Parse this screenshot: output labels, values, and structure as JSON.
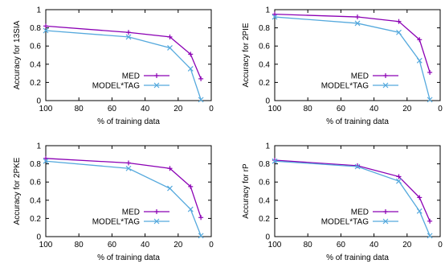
{
  "chart_data": [
    {
      "type": "line",
      "ylabel": "Accuracy for 13SIA",
      "xlabel": "% of training data",
      "xlim": [
        100,
        0
      ],
      "ylim": [
        0,
        1
      ],
      "x_ticks": [
        "100",
        "80",
        "60",
        "40",
        "20",
        "0"
      ],
      "y_ticks": [
        "0",
        "0.2",
        "0.4",
        "0.6",
        "0.8",
        "1"
      ],
      "legend": "bottom-right",
      "series": [
        {
          "name": "MED",
          "color": "#8b00b4",
          "marker": "plus",
          "points": [
            [
              100,
              0.82
            ],
            [
              50,
              0.75
            ],
            [
              25,
              0.7
            ],
            [
              12.5,
              0.51
            ],
            [
              6.25,
              0.24
            ]
          ]
        },
        {
          "name": "MODEL*TAG",
          "color": "#55a9dd",
          "marker": "x",
          "points": [
            [
              100,
              0.77
            ],
            [
              50,
              0.7
            ],
            [
              25,
              0.58
            ],
            [
              12.5,
              0.35
            ],
            [
              6.25,
              0.01
            ]
          ]
        }
      ]
    },
    {
      "type": "line",
      "ylabel": "Accuracy for 2PIE",
      "xlabel": "% of training data",
      "xlim": [
        100,
        0
      ],
      "ylim": [
        0,
        1
      ],
      "x_ticks": [
        "100",
        "80",
        "60",
        "40",
        "20",
        "0"
      ],
      "y_ticks": [
        "0",
        "0.2",
        "0.4",
        "0.6",
        "0.8",
        "1"
      ],
      "legend": "bottom-right",
      "series": [
        {
          "name": "MED",
          "color": "#8b00b4",
          "marker": "plus",
          "points": [
            [
              100,
              0.95
            ],
            [
              50,
              0.92
            ],
            [
              25,
              0.87
            ],
            [
              12.5,
              0.67
            ],
            [
              6.25,
              0.31
            ]
          ]
        },
        {
          "name": "MODEL*TAG",
          "color": "#55a9dd",
          "marker": "x",
          "points": [
            [
              100,
              0.92
            ],
            [
              50,
              0.85
            ],
            [
              25,
              0.75
            ],
            [
              12.5,
              0.44
            ],
            [
              6.25,
              0.01
            ]
          ]
        }
      ]
    },
    {
      "type": "line",
      "ylabel": "Accuracy for 2PKE",
      "xlabel": "% of training data",
      "xlim": [
        100,
        0
      ],
      "ylim": [
        0,
        1
      ],
      "x_ticks": [
        "100",
        "80",
        "60",
        "40",
        "20",
        "0"
      ],
      "y_ticks": [
        "0",
        "0.2",
        "0.4",
        "0.6",
        "0.8",
        "1"
      ],
      "legend": "bottom-right",
      "series": [
        {
          "name": "MED",
          "color": "#8b00b4",
          "marker": "plus",
          "points": [
            [
              100,
              0.86
            ],
            [
              50,
              0.81
            ],
            [
              25,
              0.75
            ],
            [
              12.5,
              0.55
            ],
            [
              6.25,
              0.21
            ]
          ]
        },
        {
          "name": "MODEL*TAG",
          "color": "#55a9dd",
          "marker": "x",
          "points": [
            [
              100,
              0.83
            ],
            [
              50,
              0.75
            ],
            [
              25,
              0.53
            ],
            [
              12.5,
              0.3
            ],
            [
              6.25,
              0.01
            ]
          ]
        }
      ]
    },
    {
      "type": "line",
      "ylabel": "Accuracy for rP",
      "xlabel": "% of training data",
      "xlim": [
        100,
        0
      ],
      "ylim": [
        0,
        1
      ],
      "x_ticks": [
        "100",
        "80",
        "60",
        "40",
        "20",
        "0"
      ],
      "y_ticks": [
        "0",
        "0.2",
        "0.4",
        "0.6",
        "0.8",
        "1"
      ],
      "legend": "bottom-right",
      "series": [
        {
          "name": "MED",
          "color": "#8b00b4",
          "marker": "plus",
          "points": [
            [
              100,
              0.84
            ],
            [
              50,
              0.78
            ],
            [
              25,
              0.66
            ],
            [
              12.5,
              0.43
            ],
            [
              6.25,
              0.17
            ]
          ]
        },
        {
          "name": "MODEL*TAG",
          "color": "#55a9dd",
          "marker": "x",
          "points": [
            [
              100,
              0.83
            ],
            [
              50,
              0.77
            ],
            [
              25,
              0.61
            ],
            [
              12.5,
              0.28
            ],
            [
              6.25,
              0.01
            ]
          ]
        }
      ]
    }
  ]
}
